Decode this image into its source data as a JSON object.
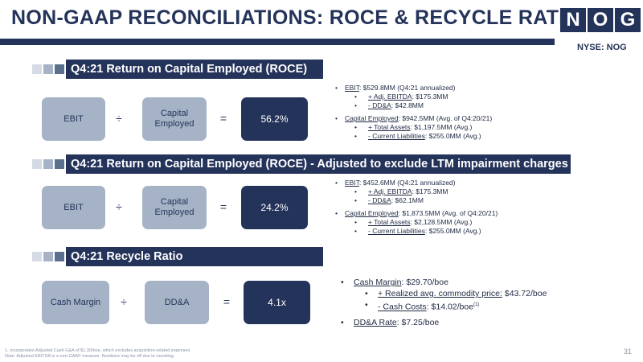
{
  "header": {
    "title": "NON-GAAP RECONCILIATIONS: ROCE & RECYCLE RATIO",
    "logo_letters": [
      "N",
      "O",
      "G"
    ],
    "ticker": "NYSE: NOG",
    "colors": {
      "navy": "#24335a",
      "light_box": "#a6b3c6"
    }
  },
  "sections": [
    {
      "heading": "Q4:21 Return on Capital Employed (ROCE)",
      "formula": {
        "left": "EBIT",
        "divide": "÷",
        "right": "Capital Employed",
        "equals": "=",
        "result": "56.2%"
      },
      "bullets": [
        {
          "level": 1,
          "label": "EBIT",
          "text": ": $529.8MM (Q4:21 annualized)"
        },
        {
          "level": 2,
          "label": "+ Adj. EBITDA",
          "text": ": $175.3MM"
        },
        {
          "level": 2,
          "label": "- DD&A",
          "text": ": $42.8MM"
        },
        {
          "level": 1,
          "label": "Capital Employed",
          "text": ": $942.5MM (Avg. of Q4:20/21)"
        },
        {
          "level": 2,
          "label": "+ Total Assets",
          "text": ": $1,197.5MM (Avg.)"
        },
        {
          "level": 2,
          "label": "- Current Liabilities",
          "text": ": $255.0MM (Avg.)"
        }
      ]
    },
    {
      "heading": "Q4:21 Return on Capital Employed (ROCE) - Adjusted to exclude LTM impairment charges",
      "formula": {
        "left": "EBIT",
        "divide": "÷",
        "right": "Capital Employed",
        "equals": "=",
        "result": "24.2%"
      },
      "bullets": [
        {
          "level": 1,
          "label": "EBIT",
          "text": ": $452.6MM (Q4:21 annualized)"
        },
        {
          "level": 2,
          "label": "+ Adj. EBITDA",
          "text": ": $175.3MM"
        },
        {
          "level": 2,
          "label": "- DD&A",
          "text": ": $62.1MM"
        },
        {
          "level": 1,
          "label": "Capital Employed",
          "text": ": $1,873.5MM (Avg. of Q4:20/21)"
        },
        {
          "level": 2,
          "label": "+ Total Assets",
          "text": ": $2,128.5MM (Avg.)"
        },
        {
          "level": 2,
          "label": "- Current Liabilities",
          "text": ": $255.0MM (Avg.)"
        }
      ]
    },
    {
      "heading": "Q4:21 Recycle Ratio",
      "formula": {
        "left": "Cash Margin",
        "divide": "÷",
        "right": "DD&A",
        "equals": "=",
        "result": "4.1x"
      },
      "bullets": [
        {
          "level": 1,
          "label": "Cash Margin",
          "text": ": $29.70/boe",
          "sup": ""
        },
        {
          "level": 2,
          "label": "+ Realized avg. commodity price:",
          "text": " $43.72/boe",
          "sup": ""
        },
        {
          "level": 2,
          "label": "- Cash Costs",
          "text": ": $14.02/boe",
          "sup": "(1)"
        },
        {
          "level": 1,
          "label": "DD&A Rate",
          "text": ": $7.25/boe",
          "sup": ""
        }
      ]
    }
  ],
  "footnote": {
    "line1": "1.     Incorporates Adjusted Cash G&A of $1.30/boe, which excludes acquisition-related expenses",
    "line2": "Note: Adjusted EBITDA is a non-GAAP measure. Numbers may be off due to rounding."
  },
  "page_number": "31"
}
